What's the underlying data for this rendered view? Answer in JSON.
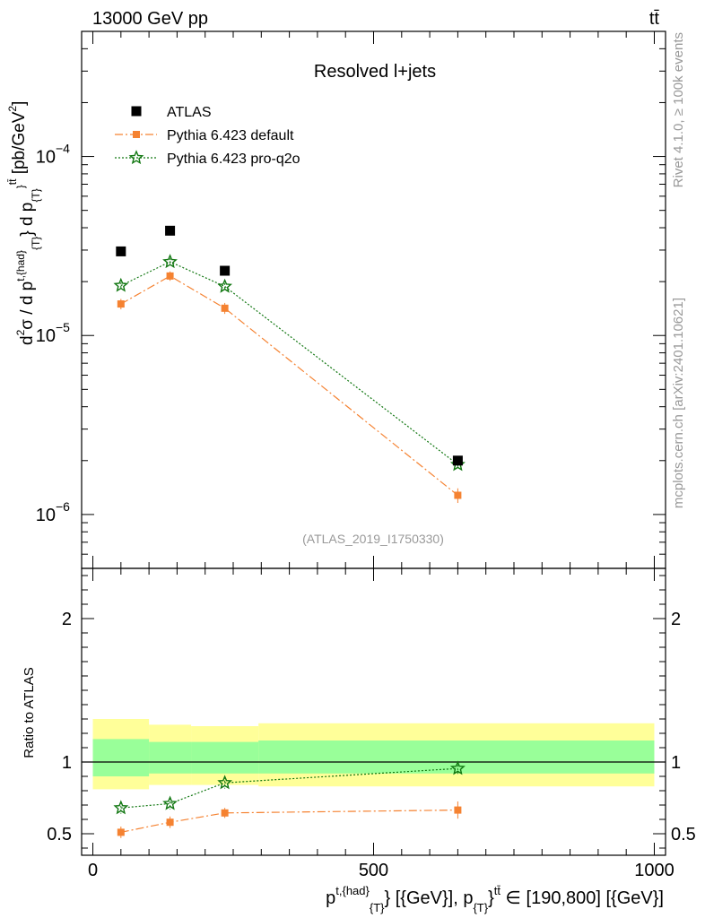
{
  "header": {
    "energy_label": "13000 GeV pp",
    "process_label": "tt̄"
  },
  "side": {
    "rivet_label": "Rivet 4.1.0, ≥ 100k events",
    "mcplots_label": "mcplots.cern.ch [arXiv:2401.10621]"
  },
  "chart_data": [
    {
      "type": "scatter",
      "panel": "main",
      "title": "Resolved l+jets",
      "watermark": "(ATLAS_2019_I1750330)",
      "ylabel_parts": [
        "d",
        "2",
        "σ / d p",
        "t,{had}",
        "{T}",
        "} d p",
        "{T}",
        "}",
        "tt̄",
        " [pb/GeV",
        "2",
        "]"
      ],
      "yscale": "log",
      "ylim": [
        5e-07,
        0.0005
      ],
      "xlim": [
        -20,
        1020
      ],
      "yticks": [
        {
          "value": 1e-06,
          "base": "10",
          "exp": "−6"
        },
        {
          "value": 1e-05,
          "base": "10",
          "exp": "−5"
        },
        {
          "value": 0.0001,
          "base": "10",
          "exp": "−4"
        }
      ],
      "legend": {
        "placement": "top-left",
        "entries": [
          {
            "label": "ATLAS",
            "series": "ATLAS"
          },
          {
            "label": "Pythia 6.423 default",
            "series": "default"
          },
          {
            "label": "Pythia 6.423 pro-q2o",
            "series": "proq2o"
          }
        ]
      },
      "series": [
        {
          "name": "ATLAS",
          "color": "#000000",
          "marker": "square",
          "x": [
            50,
            137.5,
            235,
            650
          ],
          "y": [
            2.95e-05,
            3.85e-05,
            2.3e-05,
            2e-06
          ],
          "yerr": [
            0,
            0,
            0,
            0
          ]
        },
        {
          "name": "Pythia 6.423 default",
          "color": "#f58231",
          "marker": "square-small",
          "line": "dashdot",
          "x": [
            50,
            137.5,
            235,
            650
          ],
          "y": [
            1.5e-05,
            2.15e-05,
            1.42e-05,
            1.28e-06
          ],
          "yerr": [
            1e-06,
            1.3e-06,
            1e-06,
            1.2e-07
          ]
        },
        {
          "name": "Pythia 6.423 pro-q2o",
          "color": "#117711",
          "marker": "star",
          "line": "dotted",
          "x": [
            50,
            137.5,
            235,
            650
          ],
          "y": [
            1.9e-05,
            2.58e-05,
            1.88e-05,
            1.9e-06
          ],
          "yerr": [
            8e-07,
            1.2e-06,
            8e-07,
            8e-08
          ]
        }
      ]
    },
    {
      "type": "scatter",
      "panel": "ratio",
      "ylabel": "Ratio to ATLAS",
      "xlabel_parts": [
        "p",
        "t,{had}",
        "{T}",
        "} [{GeV}], p",
        "{T}",
        "}",
        "tt̄",
        " ∈ [190,800] [{GeV}]"
      ],
      "ylim": [
        0.35,
        2.35
      ],
      "xlim": [
        -20,
        1020
      ],
      "yticks": [
        {
          "value": 0.5,
          "label": "0.5"
        },
        {
          "value": 1,
          "label": "1"
        },
        {
          "value": 2,
          "label": "2"
        }
      ],
      "xticks": [
        {
          "value": 0,
          "label": "0"
        },
        {
          "value": 500,
          "label": "500"
        },
        {
          "value": 1000,
          "label": "1000"
        }
      ],
      "bands": [
        {
          "x0": 0,
          "x1": 100,
          "yellow": [
            0.81,
            1.3
          ],
          "green": [
            0.9,
            1.16
          ]
        },
        {
          "x0": 100,
          "x1": 175,
          "yellow": [
            0.84,
            1.26
          ],
          "green": [
            0.92,
            1.14
          ]
        },
        {
          "x0": 175,
          "x1": 295,
          "yellow": [
            0.84,
            1.25
          ],
          "green": [
            0.92,
            1.14
          ]
        },
        {
          "x0": 295,
          "x1": 1000,
          "yellow": [
            0.83,
            1.27
          ],
          "green": [
            0.92,
            1.15
          ]
        }
      ],
      "series": [
        {
          "name": "Pythia 6.423 default",
          "color": "#f58231",
          "marker": "square-small",
          "line": "dashdot",
          "x": [
            50,
            137.5,
            235,
            650
          ],
          "y": [
            0.51,
            0.58,
            0.645,
            0.665
          ],
          "yerr": [
            0.04,
            0.04,
            0.035,
            0.06
          ]
        },
        {
          "name": "Pythia 6.423 pro-q2o",
          "color": "#117711",
          "marker": "star",
          "line": "dotted",
          "x": [
            50,
            137.5,
            235,
            650
          ],
          "y": [
            0.68,
            0.71,
            0.855,
            0.955
          ],
          "yerr": [
            0.04,
            0.04,
            0.04,
            0.05
          ]
        }
      ]
    }
  ]
}
